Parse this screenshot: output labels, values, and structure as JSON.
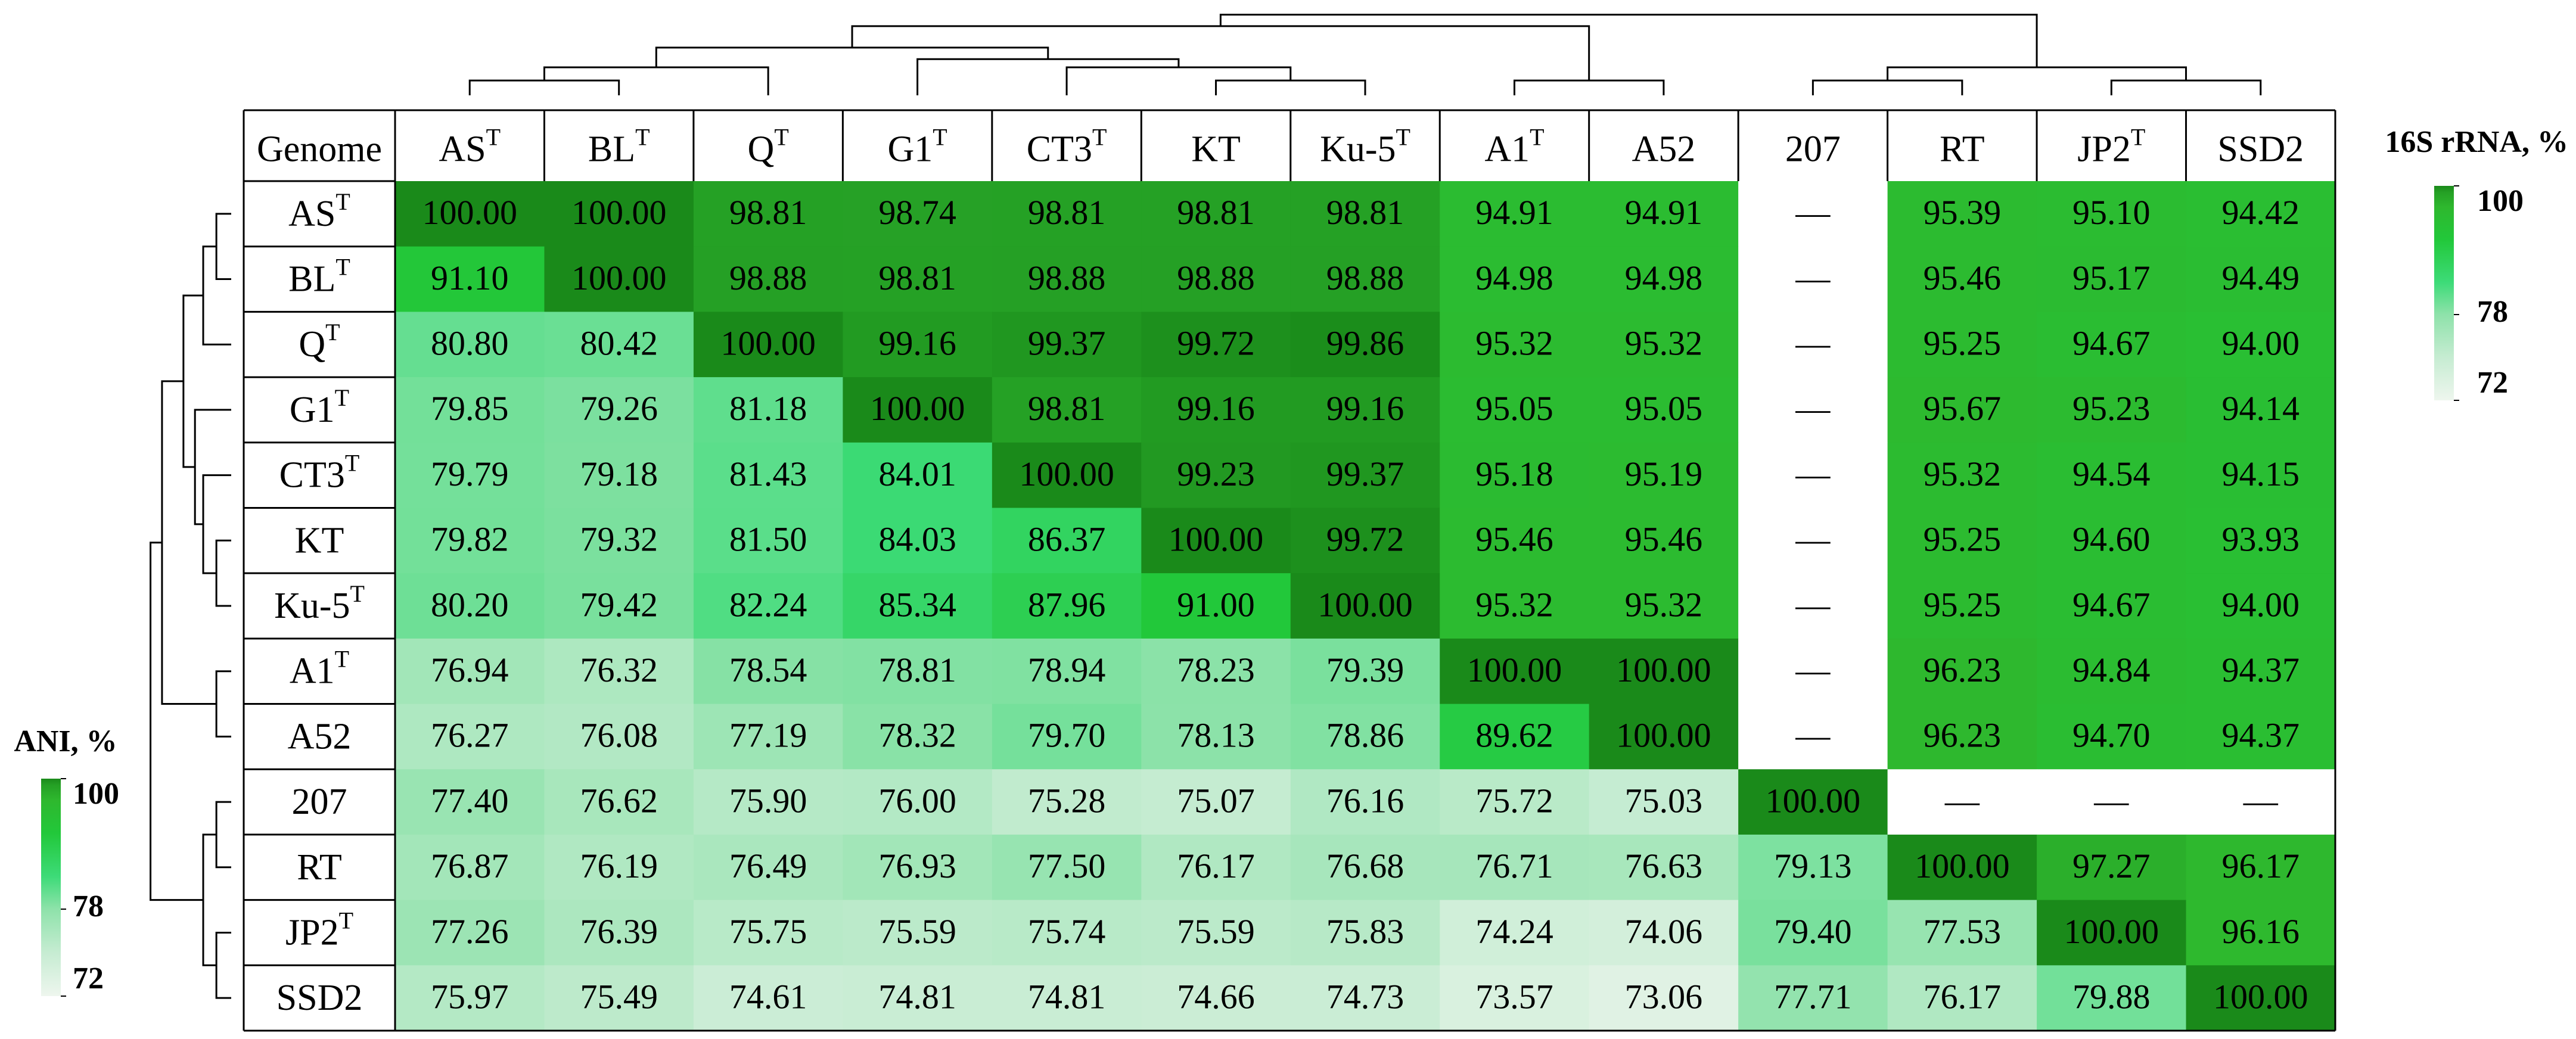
{
  "chart_data": {
    "type": "heatmap",
    "corner_label": "Genome",
    "labels": [
      {
        "name": "AS",
        "sup": "T"
      },
      {
        "name": "BL",
        "sup": "T"
      },
      {
        "name": "Q",
        "sup": "T"
      },
      {
        "name": "G1",
        "sup": "T"
      },
      {
        "name": "CT3",
        "sup": "T"
      },
      {
        "name": "KT"
      },
      {
        "name": "Ku-5",
        "sup": "T"
      },
      {
        "name": "A1",
        "sup": "T"
      },
      {
        "name": "A52"
      },
      {
        "name": "207"
      },
      {
        "name": "RT"
      },
      {
        "name": "JP2",
        "sup": "T"
      },
      {
        "name": "SSD2"
      }
    ],
    "cells": [
      [
        "100.00",
        "100.00",
        "98.81",
        "98.74",
        "98.81",
        "98.81",
        "98.81",
        "94.91",
        "94.91",
        "—",
        "95.39",
        "95.10",
        "94.42"
      ],
      [
        "91.10",
        "100.00",
        "98.88",
        "98.81",
        "98.88",
        "98.88",
        "98.88",
        "94.98",
        "94.98",
        "—",
        "95.46",
        "95.17",
        "94.49"
      ],
      [
        "80.80",
        "80.42",
        "100.00",
        "99.16",
        "99.37",
        "99.72",
        "99.86",
        "95.32",
        "95.32",
        "—",
        "95.25",
        "94.67",
        "94.00"
      ],
      [
        "79.85",
        "79.26",
        "81.18",
        "100.00",
        "98.81",
        "99.16",
        "99.16",
        "95.05",
        "95.05",
        "—",
        "95.67",
        "95.23",
        "94.14"
      ],
      [
        "79.79",
        "79.18",
        "81.43",
        "84.01",
        "100.00",
        "99.23",
        "99.37",
        "95.18",
        "95.19",
        "—",
        "95.32",
        "94.54",
        "94.15"
      ],
      [
        "79.82",
        "79.32",
        "81.50",
        "84.03",
        "86.37",
        "100.00",
        "99.72",
        "95.46",
        "95.46",
        "—",
        "95.25",
        "94.60",
        "93.93"
      ],
      [
        "80.20",
        "79.42",
        "82.24",
        "85.34",
        "87.96",
        "91.00",
        "100.00",
        "95.32",
        "95.32",
        "—",
        "95.25",
        "94.67",
        "94.00"
      ],
      [
        "76.94",
        "76.32",
        "78.54",
        "78.81",
        "78.94",
        "78.23",
        "79.39",
        "100.00",
        "100.00",
        "—",
        "96.23",
        "94.84",
        "94.37"
      ],
      [
        "76.27",
        "76.08",
        "77.19",
        "78.32",
        "79.70",
        "78.13",
        "78.86",
        "89.62",
        "100.00",
        "—",
        "96.23",
        "94.70",
        "94.37"
      ],
      [
        "77.40",
        "76.62",
        "75.90",
        "76.00",
        "75.28",
        "75.07",
        "76.16",
        "75.72",
        "75.03",
        "100.00",
        "—",
        "—",
        "—"
      ],
      [
        "76.87",
        "76.19",
        "76.49",
        "76.93",
        "77.50",
        "76.17",
        "76.68",
        "76.71",
        "76.63",
        "79.13",
        "100.00",
        "97.27",
        "96.17"
      ],
      [
        "77.26",
        "76.39",
        "75.75",
        "75.59",
        "75.74",
        "75.59",
        "75.83",
        "74.24",
        "74.06",
        "79.40",
        "77.53",
        "100.00",
        "96.16"
      ],
      [
        "75.97",
        "75.49",
        "74.61",
        "74.81",
        "74.81",
        "74.66",
        "74.73",
        "73.57",
        "73.06",
        "77.71",
        "76.17",
        "79.88",
        "100.00"
      ]
    ],
    "colorbars": [
      {
        "title": "16S rRNA, %",
        "ticks": [
          100,
          78,
          72
        ]
      },
      {
        "title": "ANI, %",
        "ticks": [
          100,
          78,
          72
        ]
      }
    ]
  }
}
